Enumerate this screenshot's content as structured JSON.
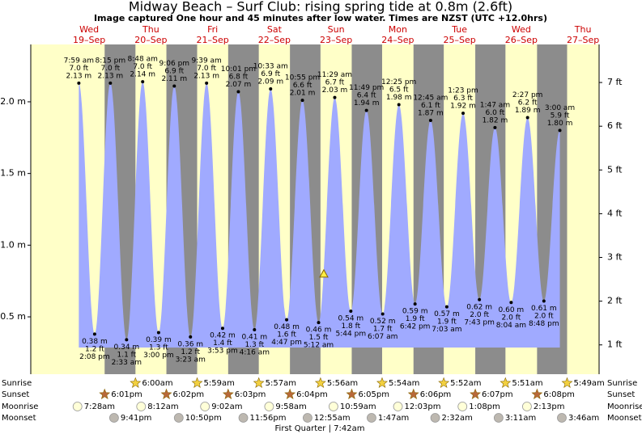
{
  "chart_data": {
    "type": "area",
    "title": "Midway Beach – Surf Club: rising  spring tide at 0.8m (2.6ft)",
    "subtitle": "Image captured One hour and 45 minutes after low water. Times are NZST (UTC +12.0hrs)",
    "ylim": [
      0.1,
      2.4
    ],
    "yticks": [
      {
        "value": 0.5,
        "label": "0.5 m"
      },
      {
        "value": 1.0,
        "label": "1.0 m"
      },
      {
        "value": 1.5,
        "label": "1.5 m"
      },
      {
        "value": 2.0,
        "label": "2.0 m"
      }
    ],
    "y2lim": [
      0.33,
      7.87
    ],
    "y2ticks": [
      {
        "value": 1,
        "label": "1 ft"
      },
      {
        "value": 2,
        "label": "2 ft"
      },
      {
        "value": 3,
        "label": "3 ft"
      },
      {
        "value": 4,
        "label": "4 ft"
      },
      {
        "value": 5,
        "label": "5 ft"
      },
      {
        "value": 6,
        "label": "6 ft"
      },
      {
        "value": 7,
        "label": "7 ft"
      }
    ],
    "current_level": 0.8,
    "tides": {
      "color": "#a0aaff",
      "x": [
        "7:59 am",
        "2:08 pm",
        "8:15 pm",
        "2:33 am",
        "8:48 am",
        "3:00 pm",
        "9:06 pm",
        "3:23 am",
        "9:39 am",
        "3:53 pm",
        "10:01 pm",
        "4:16 am",
        "10:33 am",
        "4:47 pm",
        "10:55 pm",
        "5:12 am",
        "11:29 am",
        "5:44 pm",
        "11:49 pm",
        "6:07 am",
        "12:25 pm",
        "6:42 pm",
        "12:45 am",
        "7:03 am",
        "1:23 pm",
        "7:43 pm",
        "1:47 am",
        "8:04 am",
        "2:27 pm",
        "8:48 pm",
        "3:00 am"
      ],
      "values": [
        2.13,
        0.38,
        2.13,
        0.34,
        2.14,
        0.39,
        2.11,
        0.36,
        2.13,
        0.42,
        2.07,
        0.41,
        2.09,
        0.48,
        2.01,
        0.46,
        2.03,
        0.54,
        1.94,
        0.52,
        1.98,
        0.59,
        1.87,
        0.57,
        1.92,
        0.62,
        1.82,
        0.6,
        1.89,
        0.61,
        1.8
      ],
      "value_labels": [
        "2.13 m",
        "0.38 m",
        "2.13 m",
        "0.34 m",
        "2.14 m",
        "0.39 m",
        "2.11 m",
        "0.36 m",
        "2.13 m",
        "0.42 m",
        "2.07 m",
        "0.41 m",
        "2.09 m",
        "0.48 m",
        "2.01 m",
        "0.46 m",
        "2.03 m",
        "0.54 m",
        "1.94 m",
        "0.52 m",
        "1.98 m",
        "0.59 m",
        "1.87 m",
        "0.57 m",
        "1.92 m",
        "0.62 m",
        "1.82 m",
        "0.60 m",
        "1.89 m",
        "0.61 m",
        "1.80 m"
      ],
      "ft_labels": [
        "7.0 ft",
        "1.2 ft",
        "7.0 ft",
        "1.1 ft",
        "7.0 ft",
        "1.3 ft",
        "6.9 ft",
        "1.2 ft",
        "7.0 ft",
        "1.4 ft",
        "6.8 ft",
        "1.3 ft",
        "6.9 ft",
        "1.6 ft",
        "6.6 ft",
        "1.5 ft",
        "6.7 ft",
        "1.8 ft",
        "6.4 ft",
        "1.7 ft",
        "6.5 ft",
        "1.9 ft",
        "6.1 ft",
        "1.9 ft",
        "6.3 ft",
        "2.0 ft",
        "6.0 ft",
        "2.0 ft",
        "6.2 ft",
        "2.0 ft",
        "5.9 ft"
      ]
    },
    "row_labels": [
      "Sunrise",
      "Sunset",
      "Moonrise",
      "Moonset"
    ],
    "moon_phase": "First Quarter | 7:42am",
    "days": [
      {
        "name": "Wed",
        "date": "19–Sep",
        "sunrise": null,
        "sunset": "6:01pm",
        "moonrise": "7:28am",
        "moonset": "9:41pm"
      },
      {
        "name": "Thu",
        "date": "20–Sep",
        "sunrise": "6:00am",
        "sunset": "6:02pm",
        "moonrise": "8:12am",
        "moonset": "10:50pm"
      },
      {
        "name": "Fri",
        "date": "21–Sep",
        "sunrise": "5:59am",
        "sunset": "6:03pm",
        "moonrise": "9:02am",
        "moonset": "11:56pm"
      },
      {
        "name": "Sat",
        "date": "22–Sep",
        "sunrise": "5:57am",
        "sunset": "6:04pm",
        "moonrise": "9:58am",
        "moonset": null
      },
      {
        "name": "Sun",
        "date": "23–Sep",
        "sunrise": "5:56am",
        "sunset": "6:05pm",
        "moonrise": "10:59am",
        "moonset": "12:55am"
      },
      {
        "name": "Mon",
        "date": "24–Sep",
        "sunrise": "5:54am",
        "sunset": "6:06pm",
        "moonrise": "12:03pm",
        "moonset": "1:47am"
      },
      {
        "name": "Tue",
        "date": "25–Sep",
        "sunrise": "5:52am",
        "sunset": "6:07pm",
        "moonrise": "1:08pm",
        "moonset": "2:32am"
      },
      {
        "name": "Wed",
        "date": "26–Sep",
        "sunrise": "5:51am",
        "sunset": "6:08pm",
        "moonrise": "2:13pm",
        "moonset": "3:11am"
      },
      {
        "name": "Thu",
        "date": "27–Sep",
        "sunrise": "5:49am",
        "sunset": null,
        "moonrise": null,
        "moonset": "3:46am"
      }
    ]
  }
}
